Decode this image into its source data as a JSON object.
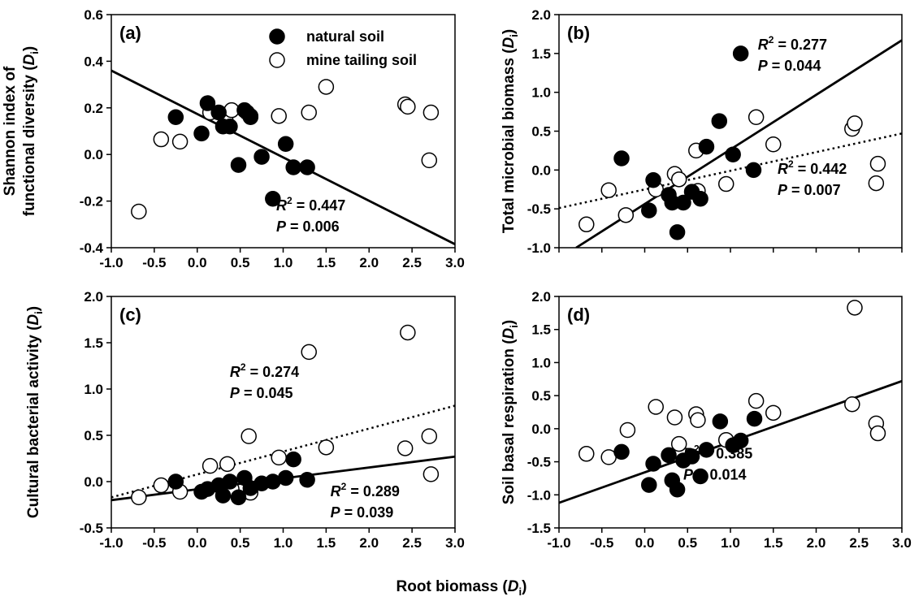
{
  "figure": {
    "xlabel_main": "Root biomass (",
    "xlabel_sub": "i",
    "xlabel_it": "D",
    "legend": {
      "natural": "natural soil",
      "mine": "mine tailing soil"
    }
  },
  "chart_data": [
    {
      "type": "scatter",
      "panel": "(a)",
      "ylabel_lines": [
        "Shannon index of",
        "functional diversity ("
      ],
      "ylabel_var": "D",
      "ylabel_sub": "i",
      "xlim": [
        -1.0,
        3.0
      ],
      "ylim": [
        -0.4,
        0.6
      ],
      "xticks": [
        "-1.0",
        "-0.5",
        "0.0",
        "0.5",
        "1.0",
        "1.5",
        "2.0",
        "2.5",
        "3.0"
      ],
      "yticks": [
        "-0.4",
        "-0.2",
        "0.0",
        "0.2",
        "0.4",
        "0.6"
      ],
      "xtick_values": [
        -1.0,
        -0.5,
        0.0,
        0.5,
        1.0,
        1.5,
        2.0,
        2.5,
        3.0
      ],
      "ytick_values": [
        -0.4,
        -0.2,
        0.0,
        0.2,
        0.4,
        0.6
      ],
      "series": [
        {
          "name": "natural soil",
          "marker": "filled",
          "points": [
            [
              -0.25,
              0.16
            ],
            [
              0.05,
              0.09
            ],
            [
              0.12,
              0.22
            ],
            [
              0.25,
              0.18
            ],
            [
              0.3,
              0.12
            ],
            [
              0.38,
              0.12
            ],
            [
              0.48,
              -0.045
            ],
            [
              0.55,
              0.19
            ],
            [
              0.62,
              0.16
            ],
            [
              0.75,
              -0.01
            ],
            [
              0.88,
              -0.19
            ],
            [
              1.03,
              0.045
            ],
            [
              1.12,
              -0.055
            ],
            [
              1.28,
              -0.055
            ]
          ]
        },
        {
          "name": "mine tailing soil",
          "marker": "open",
          "points": [
            [
              -0.68,
              -0.245
            ],
            [
              -0.42,
              0.065
            ],
            [
              -0.2,
              0.055
            ],
            [
              0.15,
              0.18
            ],
            [
              0.33,
              0.15
            ],
            [
              0.4,
              0.19
            ],
            [
              0.58,
              0.18
            ],
            [
              0.62,
              0.165
            ],
            [
              0.95,
              0.165
            ],
            [
              1.3,
              0.18
            ],
            [
              1.5,
              0.29
            ],
            [
              2.42,
              0.215
            ],
            [
              2.45,
              0.205
            ],
            [
              2.7,
              -0.025
            ],
            [
              2.72,
              0.18
            ]
          ]
        }
      ],
      "lines": [
        {
          "style": "solid",
          "x": [
            -1.0,
            3.0
          ],
          "y": [
            0.36,
            -0.385
          ]
        }
      ],
      "stats": [
        {
          "r2": " = 0.447",
          "p": " = 0.006",
          "anchor": [
            0.92,
            -0.24
          ]
        }
      ]
    },
    {
      "type": "scatter",
      "panel": "(b)",
      "ylabel_lines": [
        "Total microbial biomass ("
      ],
      "ylabel_var": "D",
      "ylabel_sub": "i",
      "xlim": [
        -1.0,
        3.0
      ],
      "ylim": [
        -1.0,
        2.0
      ],
      "xticks": [],
      "yticks": [
        "-1.0",
        "-0.5",
        "0.0",
        "0.5",
        "1.0",
        "1.5",
        "2.0"
      ],
      "xtick_values": [
        -1.0,
        -0.5,
        0.0,
        0.5,
        1.0,
        1.5,
        2.0,
        2.5,
        3.0
      ],
      "ytick_values": [
        -1.0,
        -0.5,
        0.0,
        0.5,
        1.0,
        1.5,
        2.0
      ],
      "series": [
        {
          "name": "natural soil",
          "marker": "filled",
          "points": [
            [
              -0.27,
              0.15
            ],
            [
              0.05,
              -0.52
            ],
            [
              0.1,
              -0.13
            ],
            [
              0.28,
              -0.32
            ],
            [
              0.32,
              -0.42
            ],
            [
              0.38,
              -0.8
            ],
            [
              0.45,
              -0.42
            ],
            [
              0.55,
              -0.28
            ],
            [
              0.65,
              -0.37
            ],
            [
              0.72,
              0.3
            ],
            [
              0.87,
              0.63
            ],
            [
              1.03,
              0.2
            ],
            [
              1.12,
              1.5
            ],
            [
              1.27,
              0.0
            ]
          ]
        },
        {
          "name": "mine tailing soil",
          "marker": "open",
          "points": [
            [
              -0.68,
              -0.7
            ],
            [
              -0.42,
              -0.26
            ],
            [
              -0.22,
              -0.58
            ],
            [
              0.13,
              -0.25
            ],
            [
              0.35,
              -0.05
            ],
            [
              0.4,
              -0.12
            ],
            [
              0.6,
              0.25
            ],
            [
              0.62,
              -0.27
            ],
            [
              0.95,
              -0.18
            ],
            [
              1.3,
              0.68
            ],
            [
              1.5,
              0.33
            ],
            [
              2.42,
              0.53
            ],
            [
              2.45,
              0.6
            ],
            [
              2.7,
              -0.17
            ],
            [
              2.72,
              0.08
            ]
          ]
        }
      ],
      "lines": [
        {
          "style": "solid",
          "x": [
            -0.8,
            3.0
          ],
          "y": [
            -1.0,
            1.67
          ]
        },
        {
          "style": "dotted",
          "x": [
            -1.0,
            3.0
          ],
          "y": [
            -0.49,
            0.47
          ]
        }
      ],
      "stats": [
        {
          "r2": " = 0.277",
          "p": " = 0.044",
          "anchor": [
            1.32,
            1.55
          ]
        },
        {
          "r2": " = 0.442",
          "p": " = 0.007",
          "anchor": [
            1.55,
            -0.05
          ]
        }
      ]
    },
    {
      "type": "scatter",
      "panel": "(c)",
      "ylabel_lines": [
        "Cultural bacterial activity ("
      ],
      "ylabel_var": "D",
      "ylabel_sub": "i",
      "xlim": [
        -1.0,
        3.0
      ],
      "ylim": [
        -0.5,
        2.0
      ],
      "xticks": [
        "-1.0",
        "-0.5",
        "0.0",
        "0.5",
        "1.0",
        "1.5",
        "2.0",
        "2.5",
        "3.0"
      ],
      "yticks": [
        "-0.5",
        "0.0",
        "0.5",
        "1.0",
        "1.5",
        "2.0"
      ],
      "xtick_values": [
        -1.0,
        -0.5,
        0.0,
        0.5,
        1.0,
        1.5,
        2.0,
        2.5,
        3.0
      ],
      "ytick_values": [
        -0.5,
        0.0,
        0.5,
        1.0,
        1.5,
        2.0
      ],
      "series": [
        {
          "name": "natural soil",
          "marker": "filled",
          "points": [
            [
              -0.25,
              0.0
            ],
            [
              0.05,
              -0.11
            ],
            [
              0.12,
              -0.08
            ],
            [
              0.25,
              -0.04
            ],
            [
              0.3,
              -0.15
            ],
            [
              0.38,
              0.0
            ],
            [
              0.48,
              -0.17
            ],
            [
              0.55,
              0.04
            ],
            [
              0.62,
              -0.07
            ],
            [
              0.75,
              -0.02
            ],
            [
              0.88,
              0.0
            ],
            [
              1.03,
              0.04
            ],
            [
              1.12,
              0.24
            ],
            [
              1.28,
              0.02
            ]
          ]
        },
        {
          "name": "mine tailing soil",
          "marker": "open",
          "points": [
            [
              -0.68,
              -0.17
            ],
            [
              -0.42,
              -0.04
            ],
            [
              -0.2,
              -0.11
            ],
            [
              0.15,
              0.17
            ],
            [
              0.35,
              0.19
            ],
            [
              0.4,
              -0.08
            ],
            [
              0.6,
              0.49
            ],
            [
              0.62,
              -0.12
            ],
            [
              0.95,
              0.26
            ],
            [
              1.3,
              1.4
            ],
            [
              1.5,
              0.37
            ],
            [
              2.42,
              0.36
            ],
            [
              2.45,
              1.61
            ],
            [
              2.7,
              0.49
            ],
            [
              2.72,
              0.08
            ]
          ]
        }
      ],
      "lines": [
        {
          "style": "solid",
          "x": [
            -1.0,
            3.0
          ],
          "y": [
            -0.2,
            0.27
          ]
        },
        {
          "style": "dotted",
          "x": [
            -1.0,
            3.0
          ],
          "y": [
            -0.17,
            0.82
          ]
        }
      ],
      "stats": [
        {
          "r2": " = 0.274",
          "p": " = 0.045",
          "anchor": [
            0.38,
            1.13
          ]
        },
        {
          "r2": " = 0.289",
          "p": " = 0.039",
          "anchor": [
            1.55,
            -0.16
          ]
        }
      ]
    },
    {
      "type": "scatter",
      "panel": "(d)",
      "ylabel_lines": [
        "Soil basal respiration ("
      ],
      "ylabel_var": "D",
      "ylabel_sub": "i",
      "xlim": [
        -1.0,
        3.0
      ],
      "ylim": [
        -1.5,
        2.0
      ],
      "xticks": [
        "-1.0",
        "-0.5",
        "0.0",
        "0.5",
        "1.0",
        "1.5",
        "2.0",
        "2.5",
        "3.0"
      ],
      "yticks": [
        "-1.5",
        "-1.0",
        "-0.5",
        "0.0",
        "0.5",
        "1.0",
        "1.5",
        "2.0"
      ],
      "xtick_values": [
        -1.0,
        -0.5,
        0.0,
        0.5,
        1.0,
        1.5,
        2.0,
        2.5,
        3.0
      ],
      "ytick_values": [
        -1.5,
        -1.0,
        -0.5,
        0.0,
        0.5,
        1.0,
        1.5,
        2.0
      ],
      "series": [
        {
          "name": "natural soil",
          "marker": "filled",
          "points": [
            [
              -0.27,
              -0.35
            ],
            [
              0.05,
              -0.85
            ],
            [
              0.1,
              -0.53
            ],
            [
              0.28,
              -0.4
            ],
            [
              0.32,
              -0.78
            ],
            [
              0.38,
              -0.92
            ],
            [
              0.45,
              -0.48
            ],
            [
              0.55,
              -0.42
            ],
            [
              0.65,
              -0.72
            ],
            [
              0.72,
              -0.32
            ],
            [
              0.88,
              0.11
            ],
            [
              1.03,
              -0.25
            ],
            [
              1.12,
              -0.18
            ],
            [
              1.28,
              0.15
            ]
          ]
        },
        {
          "name": "mine tailing soil",
          "marker": "open",
          "points": [
            [
              -0.68,
              -0.38
            ],
            [
              -0.42,
              -0.43
            ],
            [
              -0.2,
              -0.02
            ],
            [
              0.13,
              0.33
            ],
            [
              0.35,
              0.17
            ],
            [
              0.4,
              -0.23
            ],
            [
              0.6,
              0.22
            ],
            [
              0.62,
              0.13
            ],
            [
              0.95,
              -0.17
            ],
            [
              1.3,
              0.42
            ],
            [
              1.5,
              0.24
            ],
            [
              2.42,
              0.37
            ],
            [
              2.45,
              1.83
            ],
            [
              2.7,
              0.08
            ],
            [
              2.72,
              -0.07
            ]
          ]
        }
      ],
      "lines": [
        {
          "style": "solid",
          "x": [
            -1.0,
            3.0
          ],
          "y": [
            -1.12,
            0.72
          ]
        }
      ],
      "stats": [
        {
          "r2": " = 0.385",
          "p": " = 0.014",
          "anchor": [
            0.45,
            -0.45
          ]
        }
      ]
    }
  ]
}
